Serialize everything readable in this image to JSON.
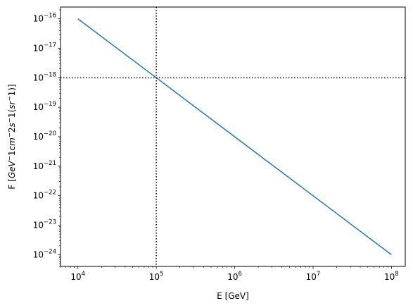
{
  "chart_data": {
    "type": "line",
    "x_scale": "log",
    "y_scale": "log",
    "xlabel": "E [GeV]",
    "ylabel": "F [GeV^-1 cm^-2 s^-1 (sr^-1)]",
    "xlim": [
      6000,
      150000000
    ],
    "ylim": [
      4e-25,
      2.5e-16
    ],
    "x_ticks": [
      {
        "value": 10000,
        "base": "10",
        "exp": "4"
      },
      {
        "value": 100000,
        "base": "10",
        "exp": "5"
      },
      {
        "value": 1000000,
        "base": "10",
        "exp": "6"
      },
      {
        "value": 10000000,
        "base": "10",
        "exp": "7"
      },
      {
        "value": 100000000,
        "base": "10",
        "exp": "8"
      }
    ],
    "y_ticks": [
      {
        "value": 1e-16,
        "base": "10",
        "exp": "−16"
      },
      {
        "value": 1e-17,
        "base": "10",
        "exp": "−17"
      },
      {
        "value": 1e-18,
        "base": "10",
        "exp": "−18"
      },
      {
        "value": 1e-19,
        "base": "10",
        "exp": "−19"
      },
      {
        "value": 1e-20,
        "base": "10",
        "exp": "−20"
      },
      {
        "value": 1e-21,
        "base": "10",
        "exp": "−21"
      },
      {
        "value": 1e-22,
        "base": "10",
        "exp": "−22"
      },
      {
        "value": 1e-23,
        "base": "10",
        "exp": "−23"
      },
      {
        "value": 1e-24,
        "base": "10",
        "exp": "−24"
      }
    ],
    "series": [
      {
        "color": "#1f77b4",
        "x": [
          10000,
          100000,
          1000000,
          10000000,
          100000000
        ],
        "y": [
          1e-16,
          1e-18,
          1e-20,
          1e-22,
          1e-24
        ]
      }
    ],
    "reference_lines": [
      {
        "orientation": "vertical",
        "x": 100000,
        "style": "dotted",
        "color": "#000000"
      },
      {
        "orientation": "horizontal",
        "y": 1e-18,
        "style": "dotted",
        "color": "#000000"
      }
    ],
    "grid": false,
    "legend": "none"
  }
}
